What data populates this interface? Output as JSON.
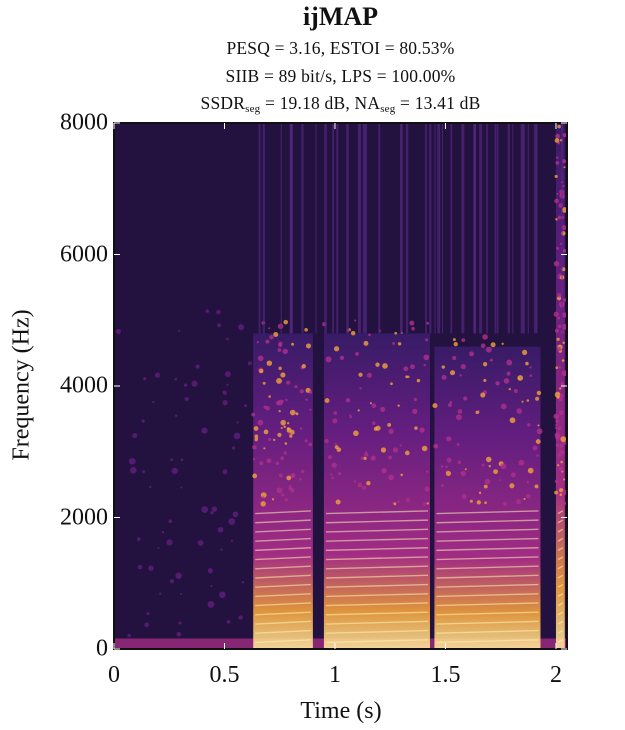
{
  "chart_data": {
    "type": "heatmap",
    "title": "ijMAP",
    "metrics": {
      "line1": "PESQ = 3.16, ESTOI = 80.53%",
      "line2": "SIIB = 89 bit/s, LPS = 100.00%",
      "line3_a": "SSDR",
      "line3_a_sub": "seg",
      "line3_b": " = 19.18 dB, NA",
      "line3_b_sub": "seg",
      "line3_c": " = 13.41 dB"
    },
    "xlabel": "Time (s)",
    "ylabel": "Frequency (Hz)",
    "x_ticks": [
      "0",
      "0.5",
      "1",
      "1.5",
      "2"
    ],
    "x_tick_values": [
      0,
      0.5,
      1,
      1.5,
      2
    ],
    "y_ticks": [
      "0",
      "2000",
      "4000",
      "6000",
      "8000"
    ],
    "y_tick_values": [
      0,
      2000,
      4000,
      6000,
      8000
    ],
    "xlim": [
      0,
      2.05
    ],
    "ylim": [
      0,
      8000
    ],
    "colormap": "inferno-like (dark purple to pale yellow)",
    "colors": {
      "background": "#23123f",
      "low": "#3a1c6b",
      "mid": "#b02f8c",
      "high": "#f3a33c",
      "peak": "#fde7a0"
    },
    "speech_segments": [
      {
        "start": 0.63,
        "end": 0.9,
        "upper_freq": 4800
      },
      {
        "start": 0.95,
        "end": 1.43,
        "upper_freq": 4800
      },
      {
        "start": 1.45,
        "end": 1.93,
        "upper_freq": 4600
      },
      {
        "start": 2.0,
        "end": 2.04,
        "upper_freq": 8000
      }
    ],
    "grid": false
  }
}
